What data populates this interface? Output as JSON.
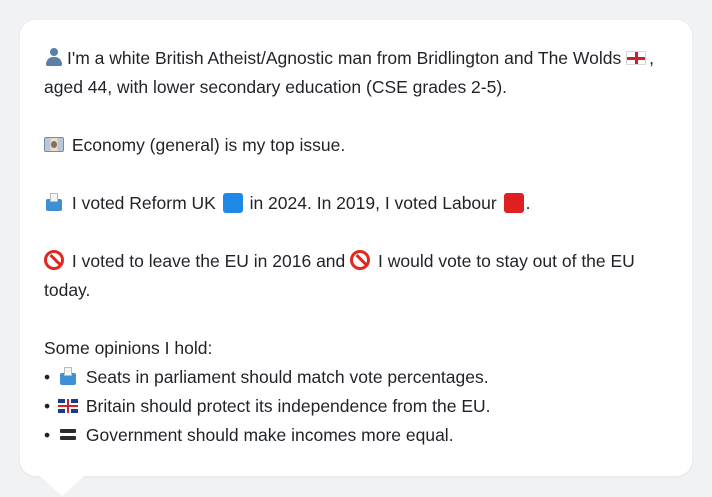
{
  "intro": {
    "icon": "person-icon",
    "text_before_flag": "I'm a white British Atheist/Agnostic man from Bridlington and The Wolds",
    "flag_icon": "flag-england-icon",
    "text_after_flag": ", aged 44, with lower secondary education (CSE grades 2-5)."
  },
  "top_issue": {
    "icon": "money-icon",
    "text": "Economy (general) is my top issue."
  },
  "votes": {
    "icon": "ballot-icon",
    "text_1": "I voted Reform UK",
    "party_2024_color": "#1e88e5",
    "text_2": "in 2024. In 2019, I voted Labour",
    "party_2019_color": "#e02020",
    "text_3": "."
  },
  "brexit": {
    "icon": "prohibited-icon",
    "text_1": "I voted to leave the EU in 2016 and",
    "text_2": "I would vote to stay out of the EU today."
  },
  "opinions": {
    "heading": "Some opinions I hold:",
    "bullet": "•",
    "items": [
      {
        "icon": "ballot-icon",
        "text": "Seats in parliament should match vote percentages."
      },
      {
        "icon": "flag-uk-icon",
        "text": "Britain should protect its independence from the EU."
      },
      {
        "icon": "equals-icon",
        "text": "Government should make incomes more equal."
      }
    ]
  }
}
